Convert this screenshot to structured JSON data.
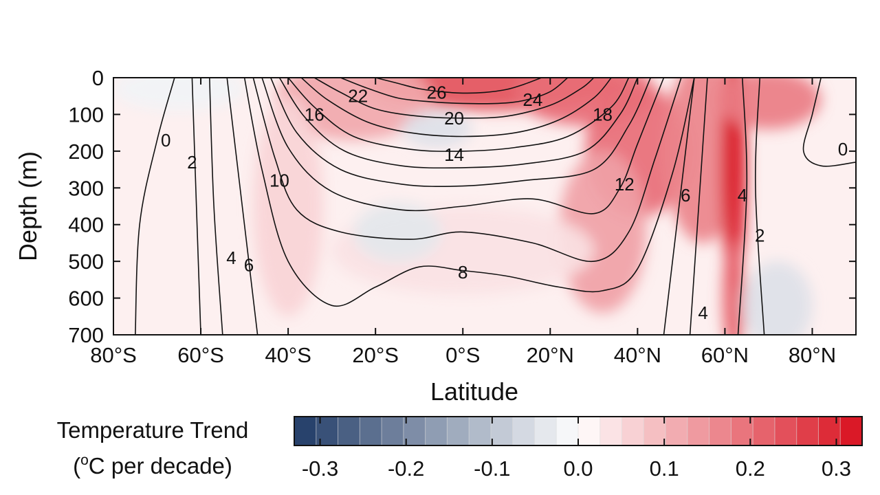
{
  "chart_data": {
    "type": "heatmap",
    "title": "",
    "xlabel": "Latitude",
    "ylabel": "Depth (m)",
    "xlim": [
      -80,
      90
    ],
    "ylim": [
      0,
      700
    ],
    "x_ticks": [
      {
        "value": -80,
        "label": "80°S"
      },
      {
        "value": -60,
        "label": "60°S"
      },
      {
        "value": -40,
        "label": "40°S"
      },
      {
        "value": -20,
        "label": "20°S"
      },
      {
        "value": 0,
        "label": "0°S"
      },
      {
        "value": 20,
        "label": "20°N"
      },
      {
        "value": 40,
        "label": "40°N"
      },
      {
        "value": 60,
        "label": "60°N"
      },
      {
        "value": 80,
        "label": "80°N"
      }
    ],
    "y_ticks": [
      0,
      100,
      200,
      300,
      400,
      500,
      600,
      700
    ],
    "colorbar": {
      "title_line1": "Temperature Trend",
      "title_line2_prefix": "(",
      "title_line2_sup": "o",
      "title_line2_suffix": "C per decade)",
      "range": [
        -0.33,
        0.33
      ],
      "tick_values": [
        -0.3,
        -0.2,
        -0.1,
        0.0,
        0.1,
        0.2,
        0.3
      ],
      "tick_labels": [
        "-0.3",
        "-0.2",
        "-0.1",
        "0.0",
        "0.1",
        "0.2",
        "0.3"
      ],
      "negative_color": "#1f3a66",
      "zero_color": "#ffffff",
      "positive_color": "#d9101e"
    },
    "temperature_trend_blobs": [
      {
        "lat": 8,
        "depth": 20,
        "rlat": 30,
        "rdepth": 70,
        "value": 0.24
      },
      {
        "lat": 28,
        "depth": 40,
        "rlat": 16,
        "rdepth": 90,
        "value": 0.2
      },
      {
        "lat": -25,
        "depth": 60,
        "rlat": 18,
        "rdepth": 110,
        "value": 0.12
      },
      {
        "lat": -40,
        "depth": 350,
        "rlat": 8,
        "rdepth": 300,
        "value": 0.06
      },
      {
        "lat": 40,
        "depth": 200,
        "rlat": 12,
        "rdepth": 180,
        "value": 0.2
      },
      {
        "lat": 32,
        "depth": 420,
        "rlat": 10,
        "rdepth": 220,
        "value": 0.13
      },
      {
        "lat": 55,
        "depth": 200,
        "rlat": 9,
        "rdepth": 250,
        "value": 0.17
      },
      {
        "lat": 62,
        "depth": 250,
        "rlat": 3,
        "rdepth": 320,
        "value": 0.31
      },
      {
        "lat": 62,
        "depth": 600,
        "rlat": 2.5,
        "rdepth": 160,
        "value": 0.22
      },
      {
        "lat": 70,
        "depth": 60,
        "rlat": 12,
        "rdepth": 80,
        "value": 0.18
      },
      {
        "lat": 0,
        "depth": 470,
        "rlat": 30,
        "rdepth": 120,
        "value": 0.04
      },
      {
        "lat": -15,
        "depth": 420,
        "rlat": 10,
        "rdepth": 80,
        "value": -0.04
      },
      {
        "lat": -6,
        "depth": 140,
        "rlat": 8,
        "rdepth": 50,
        "value": -0.05
      },
      {
        "lat": 72,
        "depth": 620,
        "rlat": 8,
        "rdepth": 120,
        "value": -0.05
      },
      {
        "lat": -65,
        "depth": 30,
        "rlat": 15,
        "rdepth": 60,
        "value": -0.02
      }
    ],
    "temperature_contours": [
      {
        "label": "26",
        "label_pos": [
          -6,
          40
        ],
        "points": [
          [
            -20,
            0
          ],
          [
            -15,
            15
          ],
          [
            -10,
            30
          ],
          [
            -5,
            38
          ],
          [
            0,
            42
          ],
          [
            5,
            40
          ],
          [
            10,
            32
          ],
          [
            14,
            18
          ],
          [
            18,
            0
          ]
        ]
      },
      {
        "label": "24",
        "label_pos": [
          16,
          60
        ],
        "points": [
          [
            -28,
            0
          ],
          [
            -22,
            28
          ],
          [
            -15,
            55
          ],
          [
            -8,
            65
          ],
          [
            0,
            70
          ],
          [
            8,
            70
          ],
          [
            14,
            62
          ],
          [
            20,
            38
          ],
          [
            24,
            0
          ]
        ]
      },
      {
        "label": "22",
        "label_pos": [
          -24,
          50
        ],
        "points": [
          [
            -34,
            0
          ],
          [
            -28,
            40
          ],
          [
            -20,
            85
          ],
          [
            -10,
            105
          ],
          [
            0,
            110
          ],
          [
            10,
            105
          ],
          [
            20,
            75
          ],
          [
            27,
            30
          ],
          [
            30,
            0
          ]
        ]
      },
      {
        "label": "20",
        "label_pos": [
          -2,
          110
        ],
        "points": [
          [
            -37,
            0
          ],
          [
            -31,
            60
          ],
          [
            -22,
            120
          ],
          [
            -12,
            150
          ],
          [
            0,
            160
          ],
          [
            12,
            150
          ],
          [
            22,
            115
          ],
          [
            30,
            55
          ],
          [
            34,
            0
          ]
        ]
      },
      {
        "label": "18",
        "label_pos": [
          32,
          100
        ],
        "points": [
          [
            -40,
            0
          ],
          [
            -34,
            80
          ],
          [
            -25,
            160
          ],
          [
            -12,
            195
          ],
          [
            0,
            200
          ],
          [
            12,
            190
          ],
          [
            24,
            160
          ],
          [
            34,
            80
          ],
          [
            38,
            0
          ]
        ]
      },
      {
        "label": "16",
        "label_pos": [
          -34,
          100
        ],
        "points": [
          [
            -42,
            0
          ],
          [
            -36,
            110
          ],
          [
            -27,
            200
          ],
          [
            -14,
            240
          ],
          [
            0,
            245
          ],
          [
            14,
            235
          ],
          [
            28,
            200
          ],
          [
            36,
            100
          ],
          [
            40,
            0
          ]
        ]
      },
      {
        "label": "14",
        "label_pos": [
          -2,
          210
        ],
        "points": [
          [
            -44,
            0
          ],
          [
            -38,
            150
          ],
          [
            -28,
            250
          ],
          [
            -14,
            290
          ],
          [
            0,
            295
          ],
          [
            14,
            280
          ],
          [
            30,
            250
          ],
          [
            38,
            130
          ],
          [
            43,
            0
          ]
        ]
      },
      {
        "label": "12",
        "label_pos": [
          37,
          290
        ],
        "points": [
          [
            -46,
            0
          ],
          [
            -40,
            190
          ],
          [
            -30,
            310
          ],
          [
            -14,
            360
          ],
          [
            0,
            350
          ],
          [
            16,
            330
          ],
          [
            30,
            370
          ],
          [
            36,
            300
          ],
          [
            40,
            180
          ],
          [
            46,
            0
          ]
        ]
      },
      {
        "label": "10",
        "label_pos": [
          -42,
          280
        ],
        "points": [
          [
            -48,
            0
          ],
          [
            -43,
            220
          ],
          [
            -38,
            360
          ],
          [
            -28,
            420
          ],
          [
            -12,
            440
          ],
          [
            0,
            420
          ],
          [
            16,
            450
          ],
          [
            30,
            500
          ],
          [
            38,
            420
          ],
          [
            44,
            220
          ],
          [
            50,
            0
          ]
        ]
      },
      {
        "label": "8",
        "label_pos": [
          0,
          530
        ],
        "points": [
          [
            -50,
            0
          ],
          [
            -46,
            250
          ],
          [
            -40,
            500
          ],
          [
            -30,
            620
          ],
          [
            -20,
            570
          ],
          [
            -10,
            515
          ],
          [
            0,
            525
          ],
          [
            10,
            540
          ],
          [
            22,
            570
          ],
          [
            32,
            580
          ],
          [
            40,
            520
          ],
          [
            48,
            260
          ],
          [
            53,
            0
          ]
        ]
      },
      {
        "label": "6",
        "label_pos": [
          -49,
          510
        ],
        "points": [
          [
            -54,
            0
          ],
          [
            -51,
            300
          ],
          [
            -47,
            700
          ]
        ]
      },
      {
        "label": "6",
        "label_pos": [
          51,
          320
        ],
        "points": [
          [
            53,
            0
          ],
          [
            50,
            300
          ],
          [
            46,
            700
          ]
        ]
      },
      {
        "label": "4",
        "label_pos": [
          -53,
          490
        ],
        "points": [
          [
            -58,
            0
          ],
          [
            -57,
            350
          ],
          [
            -55,
            700
          ]
        ]
      },
      {
        "label": "4",
        "label_pos": [
          55,
          640
        ],
        "points": [
          [
            56,
            0
          ],
          [
            54,
            350
          ],
          [
            52,
            700
          ]
        ]
      },
      {
        "label": "4",
        "label_pos": [
          64,
          320
        ],
        "points": [
          [
            64,
            0
          ],
          [
            65,
            300
          ],
          [
            63,
            700
          ]
        ]
      },
      {
        "label": "2",
        "label_pos": [
          -62,
          230
        ],
        "points": [
          [
            -62,
            0
          ],
          [
            -61,
            350
          ],
          [
            -60,
            700
          ]
        ]
      },
      {
        "label": "2",
        "label_pos": [
          68,
          430
        ],
        "points": [
          [
            68,
            0
          ],
          [
            67,
            300
          ],
          [
            69,
            700
          ]
        ]
      },
      {
        "label": "0",
        "label_pos": [
          -68,
          170
        ],
        "points": [
          [
            -66,
            0
          ],
          [
            -70,
            170
          ],
          [
            -74,
            400
          ],
          [
            -75,
            700
          ]
        ]
      },
      {
        "label": "0",
        "label_pos": [
          87,
          195
        ],
        "points": [
          [
            82,
            0
          ],
          [
            80,
            100
          ],
          [
            78,
            200
          ],
          [
            82,
            240
          ],
          [
            90,
            230
          ]
        ]
      }
    ]
  }
}
